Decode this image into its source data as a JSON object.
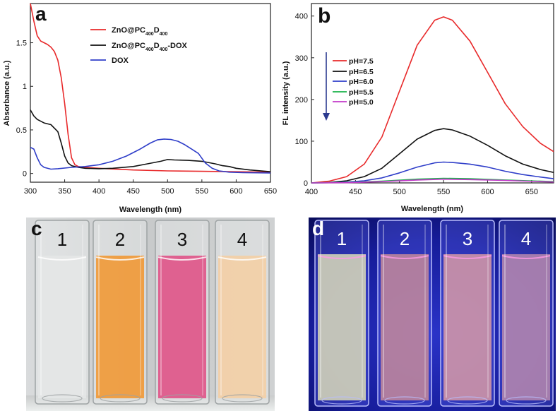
{
  "chart_data": [
    {
      "type": "line",
      "panel_label": "a",
      "xlabel": "Wavelength (nm)",
      "ylabel": "Absorbance (a.u.)",
      "xlim": [
        300,
        650
      ],
      "ylim": [
        -0.1,
        1.95
      ],
      "xticks": [
        "300",
        "350",
        "400",
        "450",
        "500",
        "550",
        "600",
        "650"
      ],
      "yticks": [
        "0",
        "0.5",
        "1",
        "1.5"
      ],
      "xtick_values": [
        300,
        350,
        400,
        450,
        500,
        550,
        600,
        650
      ],
      "ytick_values": [
        0,
        0.5,
        1,
        1.5
      ],
      "legend": "top-center",
      "series": [
        {
          "name": "ZnO@PC400D400",
          "legend_main": "ZnO@PC",
          "legend_sub1": "400",
          "legend_mid": "D",
          "legend_sub2": "400",
          "legend_tail": "",
          "color": "#e8292a",
          "x": [
            300,
            305,
            310,
            315,
            320,
            325,
            330,
            335,
            340,
            345,
            350,
            355,
            360,
            365,
            370,
            380,
            400,
            450,
            500,
            550,
            600,
            650
          ],
          "y": [
            1.95,
            1.75,
            1.58,
            1.52,
            1.5,
            1.48,
            1.45,
            1.4,
            1.3,
            1.1,
            0.8,
            0.45,
            0.18,
            0.1,
            0.08,
            0.07,
            0.06,
            0.04,
            0.03,
            0.025,
            0.02,
            0.015
          ]
        },
        {
          "name": "ZnO@PC400D400-DOX",
          "legend_main": "ZnO@PC",
          "legend_sub1": "400",
          "legend_mid": "D",
          "legend_sub2": "400",
          "legend_tail": "-DOX",
          "color": "#111111",
          "x": [
            300,
            305,
            310,
            320,
            330,
            340,
            345,
            350,
            355,
            360,
            365,
            370,
            380,
            400,
            420,
            450,
            470,
            490,
            500,
            510,
            530,
            550,
            570,
            580,
            590,
            600,
            620,
            650
          ],
          "y": [
            0.73,
            0.66,
            0.62,
            0.58,
            0.56,
            0.48,
            0.35,
            0.2,
            0.12,
            0.09,
            0.08,
            0.07,
            0.06,
            0.055,
            0.06,
            0.08,
            0.11,
            0.14,
            0.16,
            0.155,
            0.15,
            0.14,
            0.11,
            0.09,
            0.08,
            0.06,
            0.04,
            0.02
          ]
        },
        {
          "name": "DOX",
          "legend_main": "DOX",
          "legend_sub1": "",
          "legend_mid": "",
          "legend_sub2": "",
          "legend_tail": "",
          "color": "#2f3ec9",
          "x": [
            300,
            305,
            310,
            315,
            320,
            330,
            340,
            360,
            380,
            400,
            420,
            440,
            460,
            475,
            485,
            495,
            505,
            515,
            525,
            535,
            545,
            555,
            565,
            575,
            590,
            610,
            630,
            650
          ],
          "y": [
            0.3,
            0.28,
            0.18,
            0.1,
            0.07,
            0.05,
            0.055,
            0.07,
            0.08,
            0.1,
            0.14,
            0.2,
            0.28,
            0.35,
            0.385,
            0.395,
            0.39,
            0.37,
            0.33,
            0.28,
            0.23,
            0.12,
            0.06,
            0.03,
            0.015,
            0.01,
            0.008,
            0.005
          ]
        }
      ]
    },
    {
      "type": "line",
      "panel_label": "b",
      "xlabel": "Wavelength (nm)",
      "ylabel": "FL intensity (a.u.)",
      "xlim": [
        400,
        675
      ],
      "ylim": [
        0,
        430
      ],
      "xticks": [
        "400",
        "450",
        "500",
        "550",
        "600",
        "650"
      ],
      "yticks": [
        "0",
        "100",
        "200",
        "300",
        "400"
      ],
      "xtick_values": [
        400,
        450,
        500,
        550,
        600,
        650
      ],
      "ytick_values": [
        0,
        100,
        200,
        300,
        400
      ],
      "legend": "top-left",
      "arrow": "downward arrow beside legend",
      "series": [
        {
          "name": "pH=7.5",
          "color": "#e8292a",
          "x": [
            400,
            420,
            440,
            460,
            480,
            500,
            520,
            540,
            550,
            560,
            580,
            600,
            620,
            640,
            660,
            675
          ],
          "y": [
            0,
            4,
            15,
            45,
            110,
            220,
            330,
            390,
            398,
            390,
            340,
            265,
            190,
            135,
            95,
            75
          ]
        },
        {
          "name": "pH=6.5",
          "color": "#111111",
          "x": [
            400,
            420,
            440,
            460,
            480,
            500,
            520,
            540,
            550,
            560,
            580,
            600,
            620,
            640,
            660,
            675
          ],
          "y": [
            0,
            1,
            5,
            15,
            35,
            70,
            105,
            126,
            130,
            127,
            112,
            90,
            65,
            45,
            32,
            25
          ]
        },
        {
          "name": "pH=6.0",
          "color": "#2f3ec9",
          "x": [
            400,
            420,
            440,
            460,
            480,
            500,
            520,
            540,
            550,
            560,
            580,
            600,
            620,
            640,
            660,
            675
          ],
          "y": [
            0,
            0.5,
            2,
            5,
            12,
            24,
            38,
            48,
            50,
            49,
            45,
            38,
            28,
            20,
            14,
            10
          ]
        },
        {
          "name": "pH=5.5",
          "color": "#19b34a",
          "x": [
            400,
            440,
            480,
            520,
            550,
            580,
            620,
            660,
            675
          ],
          "y": [
            0,
            1,
            4,
            9,
            11,
            10,
            7,
            4,
            3
          ]
        },
        {
          "name": "pH=5.0",
          "color": "#c23ac9",
          "x": [
            400,
            440,
            480,
            520,
            550,
            580,
            620,
            660,
            675
          ],
          "y": [
            0,
            0.5,
            3,
            7,
            9,
            8,
            6,
            3,
            2
          ]
        }
      ]
    }
  ],
  "photos": {
    "c": {
      "label": "c",
      "cuvettes": [
        {
          "number": "1",
          "color": "#e4e6e6"
        },
        {
          "number": "2",
          "color": "#f09a3a"
        },
        {
          "number": "3",
          "color": "#e0578a"
        },
        {
          "number": "4",
          "color": "#f3cfa6"
        }
      ]
    },
    "d": {
      "label": "d",
      "cuvettes": [
        {
          "number": "1",
          "color": "#dcdcb8"
        },
        {
          "number": "2",
          "color": "#c58a9a"
        },
        {
          "number": "3",
          "color": "#d89aa6"
        },
        {
          "number": "4",
          "color": "#b98aae"
        }
      ]
    }
  }
}
